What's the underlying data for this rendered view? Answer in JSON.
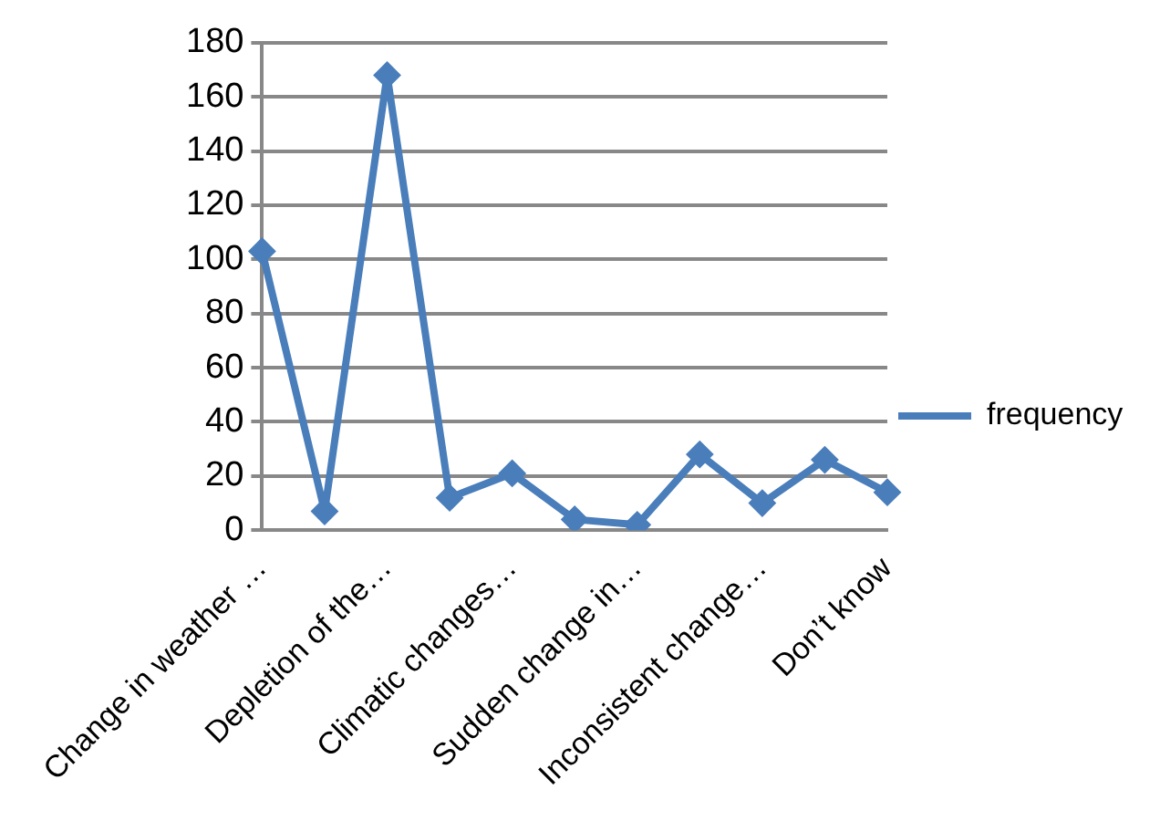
{
  "chart_data": {
    "type": "line",
    "categories": [
      "Change in weather …",
      null,
      "Depletion of the…",
      null,
      "Climatic changes…",
      null,
      "Sudden change in…",
      null,
      "Inconsistent change…",
      null,
      "Don’t know"
    ],
    "series": [
      {
        "name": "frequency",
        "color": "#4a7ebb",
        "values": [
          103,
          7,
          168,
          12,
          21,
          4,
          2,
          28,
          10,
          26,
          14
        ]
      }
    ],
    "ylim": [
      0,
      180
    ],
    "yticks": [
      0,
      20,
      40,
      60,
      80,
      100,
      120,
      140,
      160,
      180
    ],
    "grid": "y",
    "legend": "right",
    "marker": "diamond",
    "line_style": "solid"
  }
}
